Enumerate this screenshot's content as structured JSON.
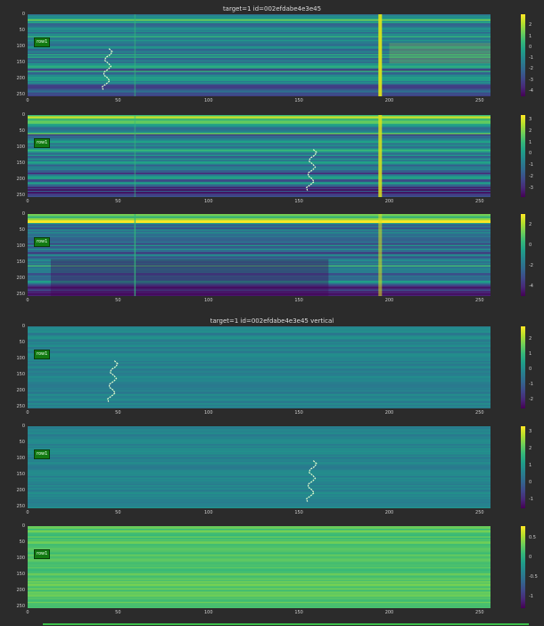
{
  "titles": {
    "top": "target=1  id=002efdabe4e3e45",
    "vertical": "target=1  id=002efdabe4e3e45 vertical"
  },
  "badge_text": "row1",
  "chart_data": [
    {
      "type": "heatmap",
      "group": "raw",
      "x_ticks": [
        0,
        50,
        100,
        150,
        200,
        250
      ],
      "y_ticks": [
        0,
        50,
        100,
        150,
        200,
        250
      ],
      "xlim": [
        0,
        256
      ],
      "ylim": [
        256,
        0
      ],
      "colorbar": {
        "ticks": [
          2,
          1,
          0,
          -1,
          -2,
          -3,
          -4
        ],
        "range": [
          -4.5,
          3
        ]
      },
      "signal_x": 45,
      "badge": "row1"
    },
    {
      "type": "heatmap",
      "group": "raw",
      "x_ticks": [
        0,
        50,
        100,
        150,
        200,
        250
      ],
      "y_ticks": [
        0,
        50,
        100,
        150,
        200,
        250
      ],
      "xlim": [
        0,
        256
      ],
      "ylim": [
        256,
        0
      ],
      "colorbar": {
        "ticks": [
          3,
          2,
          1,
          0,
          -1,
          -2,
          -3
        ],
        "range": [
          -3.8,
          3.4
        ]
      },
      "signal_x": 158,
      "badge": "row1"
    },
    {
      "type": "heatmap",
      "group": "raw",
      "x_ticks": [
        0,
        50,
        100,
        150,
        200,
        250
      ],
      "y_ticks": [
        0,
        50,
        100,
        150,
        200,
        250
      ],
      "xlim": [
        0,
        256
      ],
      "ylim": [
        256,
        0
      ],
      "colorbar": {
        "ticks": [
          2,
          0,
          -2,
          -4
        ],
        "range": [
          -5,
          3
        ]
      },
      "badge": "row1"
    },
    {
      "type": "heatmap",
      "group": "vertical",
      "x_ticks": [
        0,
        50,
        100,
        150,
        200,
        250
      ],
      "y_ticks": [
        0,
        50,
        100,
        150,
        200,
        250
      ],
      "xlim": [
        0,
        256
      ],
      "ylim": [
        256,
        0
      ],
      "colorbar": {
        "ticks": [
          2,
          1,
          0,
          -1,
          -2
        ],
        "range": [
          -2.6,
          2.8
        ]
      },
      "signal_x": 48,
      "badge": "row1"
    },
    {
      "type": "heatmap",
      "group": "vertical",
      "x_ticks": [
        0,
        50,
        100,
        150,
        200,
        250
      ],
      "y_ticks": [
        0,
        50,
        100,
        150,
        200,
        250
      ],
      "xlim": [
        0,
        256
      ],
      "ylim": [
        256,
        0
      ],
      "colorbar": {
        "ticks": [
          3,
          2,
          1,
          0,
          -1
        ],
        "range": [
          -1.5,
          3.3
        ]
      },
      "signal_x": 158,
      "badge": "row1"
    },
    {
      "type": "heatmap",
      "group": "vertical",
      "x_ticks": [
        0,
        50,
        100,
        150,
        200,
        250
      ],
      "y_ticks": [
        0,
        50,
        100,
        150,
        200,
        250
      ],
      "xlim": [
        0,
        256
      ],
      "ylim": [
        256,
        0
      ],
      "colorbar": {
        "ticks": [
          0.5,
          0.0,
          -0.5,
          -1.0
        ],
        "range": [
          -1.3,
          0.8
        ]
      },
      "badge": "row1"
    }
  ]
}
